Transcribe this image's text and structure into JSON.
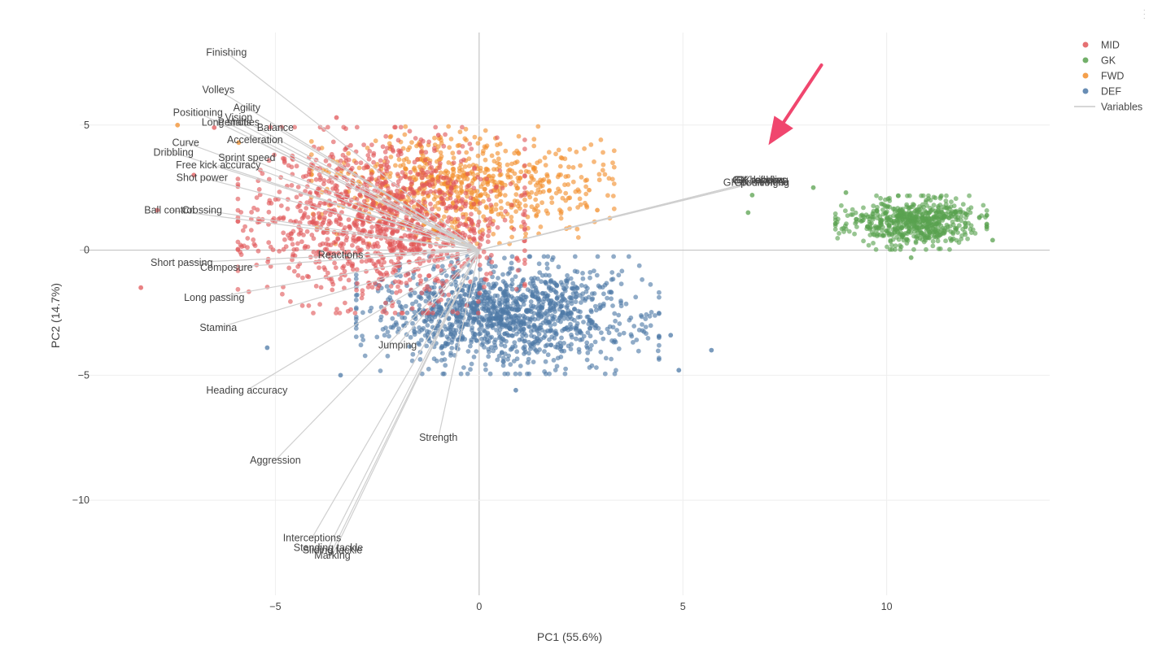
{
  "chart_data": {
    "type": "scatter",
    "title": "",
    "xlabel": "PC1 (55.6%)",
    "ylabel": "PC2 (14.7%)",
    "xlim": [
      -9.8,
      14.0
    ],
    "ylim": [
      -13.8,
      8.7
    ],
    "xticks": [
      -5,
      0,
      5,
      10
    ],
    "yticks": [
      5,
      0,
      -5,
      -10
    ],
    "xtick_labels": [
      "−5",
      "0",
      "5",
      "10"
    ],
    "ytick_labels": [
      "5",
      "0",
      "−5",
      "−10"
    ],
    "grid": true,
    "legend_position": "top-right",
    "colors": {
      "MID": "#d62728",
      "GK": "#2ca02c",
      "FWD": "#ff7f0e",
      "DEF": "#1f77b4",
      "Variables": "#c8c8c8"
    },
    "series": [
      {
        "name": "MID",
        "center": [
          -2.4,
          1.2
        ],
        "spread": [
          1.8,
          1.9
        ],
        "count": 1200,
        "seed": 11,
        "extremes": [
          [
            -8.3,
            -1.5
          ],
          [
            -7.9,
            1.6
          ],
          [
            -3.5,
            5.3
          ],
          [
            -1.0,
            4.6
          ],
          [
            -6.5,
            4.9
          ],
          [
            -7.0,
            3.0
          ]
        ]
      },
      {
        "name": "GK",
        "center": [
          10.6,
          1.1
        ],
        "spread": [
          0.95,
          0.55
        ],
        "count": 600,
        "seed": 23,
        "extremes": [
          [
            6.7,
            2.2
          ],
          [
            6.6,
            1.5
          ],
          [
            8.2,
            2.5
          ],
          [
            12.6,
            0.4
          ],
          [
            10.6,
            -0.3
          ],
          [
            9.0,
            2.3
          ]
        ]
      },
      {
        "name": "FWD",
        "center": [
          -0.4,
          2.6
        ],
        "spread": [
          1.9,
          1.2
        ],
        "count": 700,
        "seed": 37,
        "extremes": [
          [
            -7.4,
            5.0
          ],
          [
            2.9,
            1.6
          ],
          [
            2.7,
            2.4
          ],
          [
            0.8,
            0.9
          ],
          [
            -5.9,
            4.3
          ]
        ]
      },
      {
        "name": "DEF",
        "center": [
          0.7,
          -2.6
        ],
        "spread": [
          1.9,
          1.2
        ],
        "count": 1300,
        "seed": 53,
        "extremes": [
          [
            5.7,
            -4.0
          ],
          [
            4.9,
            -4.8
          ],
          [
            -3.4,
            -5.0
          ],
          [
            -5.2,
            -3.9
          ],
          [
            0.9,
            -5.6
          ],
          [
            4.7,
            -3.4
          ]
        ]
      }
    ],
    "variables": [
      {
        "name": "Finishing",
        "x": -6.2,
        "y": 7.9
      },
      {
        "name": "Volleys",
        "x": -6.4,
        "y": 6.4
      },
      {
        "name": "Agility",
        "x": -5.7,
        "y": 5.7
      },
      {
        "name": "Positioning",
        "x": -6.9,
        "y": 5.5
      },
      {
        "name": "Vision",
        "x": -5.9,
        "y": 5.3
      },
      {
        "name": "Long shots",
        "x": -6.2,
        "y": 5.1
      },
      {
        "name": "Penalties",
        "x": -5.9,
        "y": 5.1
      },
      {
        "name": "Balance",
        "x": -5.0,
        "y": 4.9
      },
      {
        "name": "Acceleration",
        "x": -5.5,
        "y": 4.4
      },
      {
        "name": "Curve",
        "x": -7.2,
        "y": 4.3
      },
      {
        "name": "Dribbling",
        "x": -7.5,
        "y": 3.9
      },
      {
        "name": "Sprint speed",
        "x": -5.7,
        "y": 3.7
      },
      {
        "name": "Free kick accuracy",
        "x": -6.4,
        "y": 3.4
      },
      {
        "name": "Shot power",
        "x": -6.8,
        "y": 2.9
      },
      {
        "name": "Ball control",
        "x": -7.6,
        "y": 1.6
      },
      {
        "name": "Crossing",
        "x": -6.8,
        "y": 1.6
      },
      {
        "name": "Short passing",
        "x": -7.3,
        "y": -0.5
      },
      {
        "name": "Composure",
        "x": -6.2,
        "y": -0.7
      },
      {
        "name": "Reactions",
        "x": -3.4,
        "y": -0.2
      },
      {
        "name": "Long passing",
        "x": -6.5,
        "y": -1.9
      },
      {
        "name": "Stamina",
        "x": -6.4,
        "y": -3.1
      },
      {
        "name": "Jumping",
        "x": -2.0,
        "y": -3.8
      },
      {
        "name": "Heading accuracy",
        "x": -5.7,
        "y": -5.6
      },
      {
        "name": "Strength",
        "x": -1.0,
        "y": -7.5
      },
      {
        "name": "Aggression",
        "x": -5.0,
        "y": -8.4
      },
      {
        "name": "Interceptions",
        "x": -4.1,
        "y": -11.5
      },
      {
        "name": "Standing tackle",
        "x": -3.7,
        "y": -11.9
      },
      {
        "name": "Sliding tackle",
        "x": -3.6,
        "y": -12.0
      },
      {
        "name": "Marking",
        "x": -3.6,
        "y": -12.2
      },
      {
        "name": "GK diving",
        "x": 6.8,
        "y": 2.7
      },
      {
        "name": "GK handling",
        "x": 6.9,
        "y": 2.8
      },
      {
        "name": "GK kicking",
        "x": 6.9,
        "y": 2.8
      },
      {
        "name": "GK positioning",
        "x": 6.8,
        "y": 2.7
      },
      {
        "name": "GK reflexes",
        "x": 6.9,
        "y": 2.8
      }
    ]
  },
  "legend": {
    "items": [
      {
        "label": "MID",
        "color": "#e15759",
        "kind": "marker"
      },
      {
        "label": "GK",
        "color": "#59a14f",
        "kind": "marker"
      },
      {
        "label": "FWD",
        "color": "#f28e2b",
        "kind": "marker"
      },
      {
        "label": "DEF",
        "color": "#4e79a7",
        "kind": "marker"
      },
      {
        "label": "Variables",
        "color": "#c8c8c8",
        "kind": "line"
      }
    ]
  },
  "annotation": {
    "type": "arrow",
    "color": "#f0466e",
    "tail": [
      8.4,
      7.4
    ],
    "head": [
      7.1,
      4.2
    ]
  }
}
